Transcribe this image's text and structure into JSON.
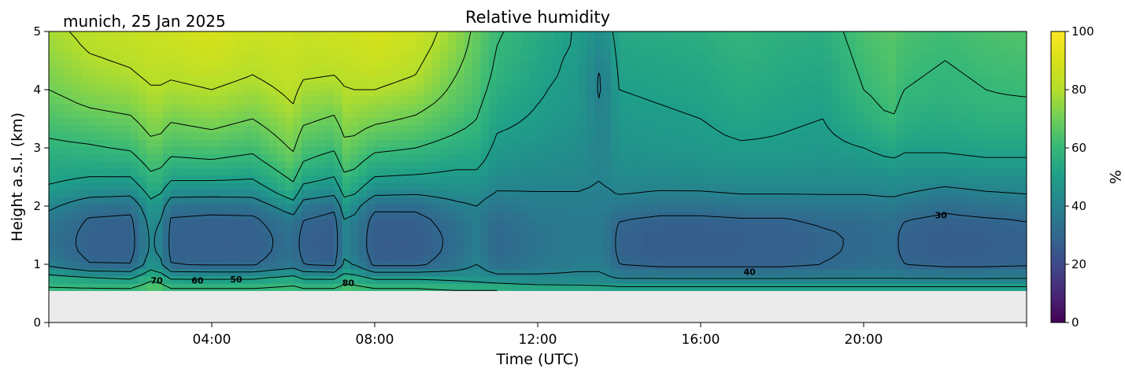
{
  "chart_data": {
    "type": "heatmap",
    "title": "Relative humidity",
    "subtitle": "munich, 25 Jan 2025",
    "xlabel": "Time (UTC)",
    "ylabel": "Height a.s.l. (km)",
    "x_ticks": [
      "04:00",
      "08:00",
      "12:00",
      "16:00",
      "20:00"
    ],
    "x_tick_hours": [
      4,
      8,
      12,
      16,
      20
    ],
    "xlim_hours": [
      0,
      24
    ],
    "y_ticks": [
      "0",
      "1",
      "2",
      "3",
      "4",
      "5"
    ],
    "ylim_km": [
      0,
      5
    ],
    "data_bottom_km": 0.55,
    "colorbar": {
      "label": "%",
      "ticks": [
        "0",
        "20",
        "40",
        "60",
        "80",
        "100"
      ],
      "range": [
        0,
        100
      ],
      "colormap": "viridis"
    },
    "contour_levels": [
      20,
      30,
      40,
      50,
      60,
      70,
      80,
      90
    ],
    "contour_labels": [
      {
        "text": "70",
        "hour": 2.65,
        "km": 0.67
      },
      {
        "text": "60",
        "hour": 3.65,
        "km": 0.67
      },
      {
        "text": "50",
        "hour": 4.6,
        "km": 0.69
      },
      {
        "text": "80",
        "hour": 7.35,
        "km": 0.63
      },
      {
        "text": "40",
        "hour": 17.2,
        "km": 0.82
      },
      {
        "text": "30",
        "hour": 21.9,
        "km": 1.79
      }
    ],
    "humidity_grid": {
      "heights_km": [
        0.55,
        0.75,
        1.0,
        1.25,
        1.5,
        1.75,
        2.0,
        2.25,
        2.5,
        2.75,
        3.0,
        3.25,
        3.5,
        3.75,
        4.0,
        4.25,
        4.5,
        4.75,
        5.0
      ],
      "times_hour": [
        0,
        1,
        2,
        2.6,
        3,
        4,
        5,
        6,
        6.2,
        7,
        7.3,
        8,
        9,
        10,
        10.5,
        11,
        12,
        13,
        13.6,
        14,
        15,
        16,
        17,
        18,
        19,
        20,
        20.7,
        21,
        22,
        23,
        24
      ],
      "profiles": [
        [
          62,
          55,
          38,
          34,
          34,
          36,
          42,
          48,
          52,
          55,
          58,
          61,
          64,
          67,
          70,
          72,
          74,
          76,
          78
        ],
        [
          62,
          52,
          30,
          28,
          28,
          29,
          34,
          44,
          50,
          55,
          59,
          63,
          67,
          71,
          74,
          77,
          79,
          81,
          82
        ],
        [
          62,
          50,
          30,
          27,
          27,
          28,
          33,
          43,
          50,
          56,
          61,
          65,
          69,
          73,
          76,
          79,
          81,
          83,
          84
        ],
        [
          68,
          60,
          48,
          44,
          44,
          46,
          50,
          55,
          60,
          64,
          68,
          72,
          75,
          78,
          80,
          82,
          84,
          85,
          86
        ],
        [
          62,
          50,
          30,
          28,
          28,
          29,
          34,
          44,
          52,
          58,
          63,
          67,
          71,
          75,
          78,
          81,
          83,
          85,
          86
        ],
        [
          62,
          50,
          29,
          27,
          27,
          28,
          33,
          44,
          52,
          59,
          64,
          69,
          73,
          77,
          80,
          83,
          86,
          88,
          90
        ],
        [
          62,
          50,
          29,
          27,
          27,
          28,
          34,
          44,
          51,
          57,
          62,
          66,
          70,
          74,
          77,
          80,
          82,
          84,
          86
        ],
        [
          64,
          54,
          35,
          33,
          33,
          36,
          46,
          56,
          62,
          67,
          71,
          74,
          77,
          80,
          82,
          84,
          85,
          86,
          87
        ],
        [
          62,
          50,
          30,
          28,
          28,
          30,
          36,
          46,
          54,
          60,
          64,
          68,
          72,
          75,
          78,
          81,
          83,
          84,
          85
        ],
        [
          62,
          50,
          28,
          26,
          26,
          27,
          32,
          43,
          50,
          56,
          61,
          65,
          69,
          73,
          77,
          80,
          83,
          85,
          87
        ],
        [
          66,
          56,
          44,
          40,
          40,
          42,
          48,
          55,
          60,
          65,
          69,
          72,
          75,
          78,
          80,
          82,
          84,
          85,
          86
        ],
        [
          62,
          50,
          28,
          26,
          26,
          27,
          32,
          43,
          50,
          56,
          62,
          67,
          72,
          76,
          80,
          83,
          86,
          88,
          90
        ],
        [
          62,
          50,
          28,
          26,
          26,
          27,
          32,
          42,
          49,
          55,
          60,
          65,
          69,
          73,
          77,
          80,
          82,
          84,
          86
        ],
        [
          60,
          48,
          34,
          32,
          32,
          34,
          38,
          44,
          48,
          52,
          56,
          60,
          63,
          66,
          68,
          70,
          72,
          74,
          75
        ],
        [
          60,
          46,
          40,
          38,
          38,
          38,
          40,
          44,
          48,
          52,
          55,
          58,
          60,
          62,
          64,
          65,
          66,
          67,
          68
        ],
        [
          60,
          44,
          32,
          30,
          30,
          31,
          35,
          40,
          43,
          46,
          48,
          50,
          52,
          54,
          56,
          58,
          59,
          60,
          61
        ],
        [
          58,
          42,
          36,
          35,
          35,
          36,
          38,
          40,
          42,
          44,
          46,
          48,
          49,
          50,
          51,
          52,
          53,
          54,
          55
        ],
        [
          57,
          42,
          38,
          37,
          37,
          37,
          38,
          40,
          42,
          43,
          44,
          45,
          46,
          47,
          47,
          48,
          48,
          49,
          49
        ],
        [
          56,
          42,
          38,
          37,
          37,
          37,
          38,
          39,
          40,
          40,
          40,
          40,
          40,
          39,
          38,
          38,
          40,
          42,
          44
        ],
        [
          55,
          40,
          30,
          28,
          28,
          30,
          36,
          41,
          43,
          45,
          46,
          47,
          48,
          49,
          50,
          51,
          52,
          53,
          54
        ],
        [
          55,
          40,
          28,
          26,
          26,
          28,
          34,
          40,
          43,
          45,
          47,
          48,
          49,
          50,
          51,
          52,
          53,
          54,
          55
        ],
        [
          55,
          40,
          28,
          26,
          26,
          28,
          34,
          40,
          44,
          46,
          48,
          49,
          50,
          51,
          52,
          53,
          54,
          55,
          56
        ],
        [
          55,
          40,
          28,
          27,
          27,
          29,
          35,
          41,
          44,
          47,
          49,
          51,
          52,
          54,
          55,
          56,
          57,
          58,
          59
        ],
        [
          55,
          40,
          28,
          27,
          27,
          29,
          35,
          41,
          44,
          47,
          49,
          50,
          51,
          52,
          53,
          54,
          55,
          56,
          57
        ],
        [
          55,
          40,
          30,
          29,
          29,
          31,
          36,
          41,
          44,
          46,
          48,
          49,
          50,
          51,
          52,
          53,
          54,
          55,
          56
        ],
        [
          55,
          40,
          32,
          31,
          31,
          32,
          36,
          41,
          44,
          47,
          50,
          53,
          56,
          58,
          60,
          61,
          62,
          63,
          64
        ],
        [
          55,
          40,
          33,
          32,
          32,
          33,
          37,
          42,
          45,
          49,
          53,
          57,
          60,
          62,
          63,
          64,
          65,
          65,
          66
        ],
        [
          55,
          40,
          30,
          28,
          28,
          30,
          35,
          41,
          45,
          48,
          51,
          54,
          56,
          58,
          60,
          61,
          62,
          63,
          64
        ],
        [
          55,
          40,
          28,
          26,
          26,
          28,
          32,
          38,
          44,
          48,
          51,
          53,
          55,
          57,
          58,
          59,
          60,
          61,
          62
        ],
        [
          55,
          40,
          28,
          27,
          27,
          29,
          34,
          40,
          45,
          49,
          52,
          55,
          57,
          59,
          60,
          61,
          62,
          63,
          64
        ],
        [
          55,
          40,
          29,
          28,
          28,
          30,
          35,
          41,
          45,
          49,
          52,
          55,
          57,
          59,
          61,
          62,
          63,
          64,
          65
        ]
      ]
    }
  }
}
